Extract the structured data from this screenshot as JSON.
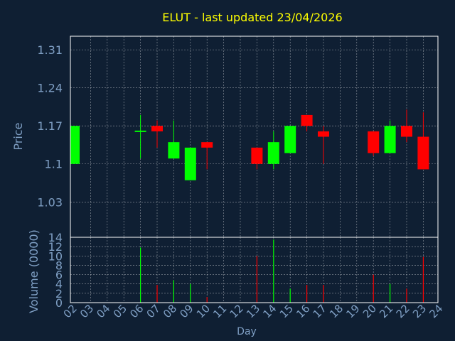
{
  "colors": {
    "background": "#0f1f33",
    "title": "#ffff00",
    "axis_text": "#7f9fc4",
    "frame": "#ffffff",
    "grid": "#ffffff",
    "up": "#00ff00",
    "down": "#ff0000"
  },
  "chart_data": [
    {
      "type": "candlestick",
      "title": "ELUT - last updated 23/04/2026",
      "ylabel": "Price",
      "yticks": [
        "1.31",
        "1.24",
        "1.17",
        "1.1",
        "1.03"
      ],
      "ylim": [
        0.965,
        1.335
      ],
      "grid": true,
      "categories": [
        "02",
        "03",
        "04",
        "05",
        "06",
        "07",
        "08",
        "09",
        "10",
        "11",
        "12",
        "13",
        "14",
        "15",
        "16",
        "17",
        "18",
        "19",
        "20",
        "21",
        "22",
        "23",
        "24"
      ],
      "candles": [
        {
          "day": "02",
          "open": 1.1,
          "close": 1.17,
          "high": 1.17,
          "low": 1.1
        },
        {
          "day": "06",
          "open": 1.16,
          "close": 1.16,
          "high": 1.19,
          "low": 1.11
        },
        {
          "day": "07",
          "open": 1.17,
          "close": 1.16,
          "high": 1.18,
          "low": 1.13
        },
        {
          "day": "08",
          "open": 1.11,
          "close": 1.14,
          "high": 1.18,
          "low": 1.11
        },
        {
          "day": "09",
          "open": 1.07,
          "close": 1.13,
          "high": 1.13,
          "low": 1.07
        },
        {
          "day": "10",
          "open": 1.14,
          "close": 1.13,
          "high": 1.14,
          "low": 1.09
        },
        {
          "day": "13",
          "open": 1.13,
          "close": 1.1,
          "high": 1.13,
          "low": 1.09
        },
        {
          "day": "14",
          "open": 1.1,
          "close": 1.14,
          "high": 1.16,
          "low": 1.09
        },
        {
          "day": "15",
          "open": 1.12,
          "close": 1.17,
          "high": 1.17,
          "low": 1.12
        },
        {
          "day": "16",
          "open": 1.19,
          "close": 1.17,
          "high": 1.19,
          "low": 1.16
        },
        {
          "day": "17",
          "open": 1.16,
          "close": 1.15,
          "high": 1.17,
          "low": 1.1
        },
        {
          "day": "20",
          "open": 1.16,
          "close": 1.12,
          "high": 1.16,
          "low": 1.115
        },
        {
          "day": "21",
          "open": 1.12,
          "close": 1.17,
          "high": 1.18,
          "low": 1.12
        },
        {
          "day": "22",
          "open": 1.17,
          "close": 1.15,
          "high": 1.2,
          "low": 1.14
        },
        {
          "day": "23",
          "open": 1.15,
          "close": 1.09,
          "high": 1.195,
          "low": 1.09
        }
      ]
    },
    {
      "type": "bar",
      "ylabel": "Volume (0000)",
      "xlabel": "Day",
      "yticks": [
        "14",
        "12",
        "10",
        "8",
        "6",
        "4",
        "2",
        "0"
      ],
      "ylim": [
        0,
        14
      ],
      "grid": true,
      "categories": [
        "02",
        "03",
        "04",
        "05",
        "06",
        "07",
        "08",
        "09",
        "10",
        "11",
        "12",
        "13",
        "14",
        "15",
        "16",
        "17",
        "18",
        "19",
        "20",
        "21",
        "22",
        "23",
        "24"
      ],
      "bars": [
        {
          "day": "06",
          "value": 11.8,
          "direction": "up"
        },
        {
          "day": "07",
          "value": 3.8,
          "direction": "down"
        },
        {
          "day": "08",
          "value": 4.8,
          "direction": "up"
        },
        {
          "day": "09",
          "value": 4.0,
          "direction": "up"
        },
        {
          "day": "10",
          "value": 1.2,
          "direction": "down"
        },
        {
          "day": "13",
          "value": 10.0,
          "direction": "down"
        },
        {
          "day": "14",
          "value": 13.5,
          "direction": "up"
        },
        {
          "day": "15",
          "value": 3.0,
          "direction": "up"
        },
        {
          "day": "16",
          "value": 3.8,
          "direction": "down"
        },
        {
          "day": "17",
          "value": 3.8,
          "direction": "down"
        },
        {
          "day": "20",
          "value": 6.0,
          "direction": "down"
        },
        {
          "day": "21",
          "value": 4.0,
          "direction": "up"
        },
        {
          "day": "22",
          "value": 3.0,
          "direction": "down"
        },
        {
          "day": "23",
          "value": 9.8,
          "direction": "down"
        }
      ]
    }
  ]
}
